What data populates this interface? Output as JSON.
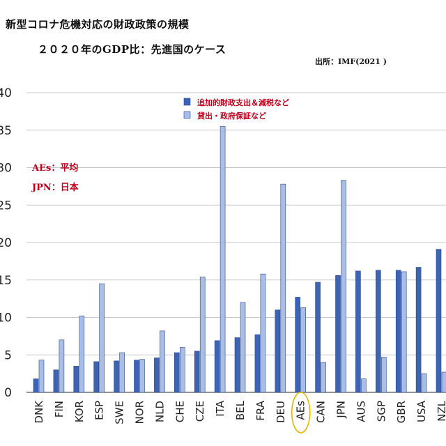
{
  "header": {
    "title": "新型コロナ危機対応の財政政策の規模",
    "subtitle": "２０２０年のGDP比：先進国のケース",
    "source": "出所：IMF(2021 )"
  },
  "notes": [
    "AEs：平均",
    "JPN：日本"
  ],
  "colors": {
    "series1": "#3c63b4",
    "series2": "#a9bde6",
    "grid": "#c9c9c9",
    "axis": "#555555",
    "highlight": "#e8b400"
  },
  "chart_data": {
    "type": "bar",
    "ylim": [
      0,
      40
    ],
    "yticks": [
      0,
      5,
      10,
      15,
      20,
      25,
      30,
      35,
      40
    ],
    "ytick_labels": [
      "0",
      "5",
      "10",
      "15",
      "20",
      "25",
      "30",
      "35",
      "40"
    ],
    "grid": true,
    "legend_position": "top-center",
    "highlight_category": "AEs",
    "categories": [
      "DNK",
      "FIN",
      "KOR",
      "ESP",
      "SWE",
      "NOR",
      "NLD",
      "CHE",
      "CZE",
      "ITA",
      "BEL",
      "FRA",
      "DEU",
      "AEs",
      "CAN",
      "JPN",
      "AUS",
      "SGP",
      "GBR",
      "USA",
      "NZL"
    ],
    "series": [
      {
        "name": "追加的財政支出＆減税など",
        "values": [
          1.8,
          3.0,
          3.5,
          4.1,
          4.2,
          4.3,
          4.6,
          5.3,
          5.5,
          6.9,
          7.3,
          7.7,
          11.0,
          12.7,
          14.7,
          15.6,
          16.2,
          16.3,
          16.3,
          16.7,
          19.1
        ]
      },
      {
        "name": "貸出・政府保証など",
        "values": [
          4.3,
          7.0,
          10.2,
          14.5,
          5.3,
          4.4,
          8.2,
          6.0,
          15.4,
          35.5,
          12.0,
          15.8,
          27.8,
          11.3,
          4.0,
          28.3,
          1.8,
          4.7,
          16.1,
          2.5,
          2.7
        ]
      }
    ]
  }
}
